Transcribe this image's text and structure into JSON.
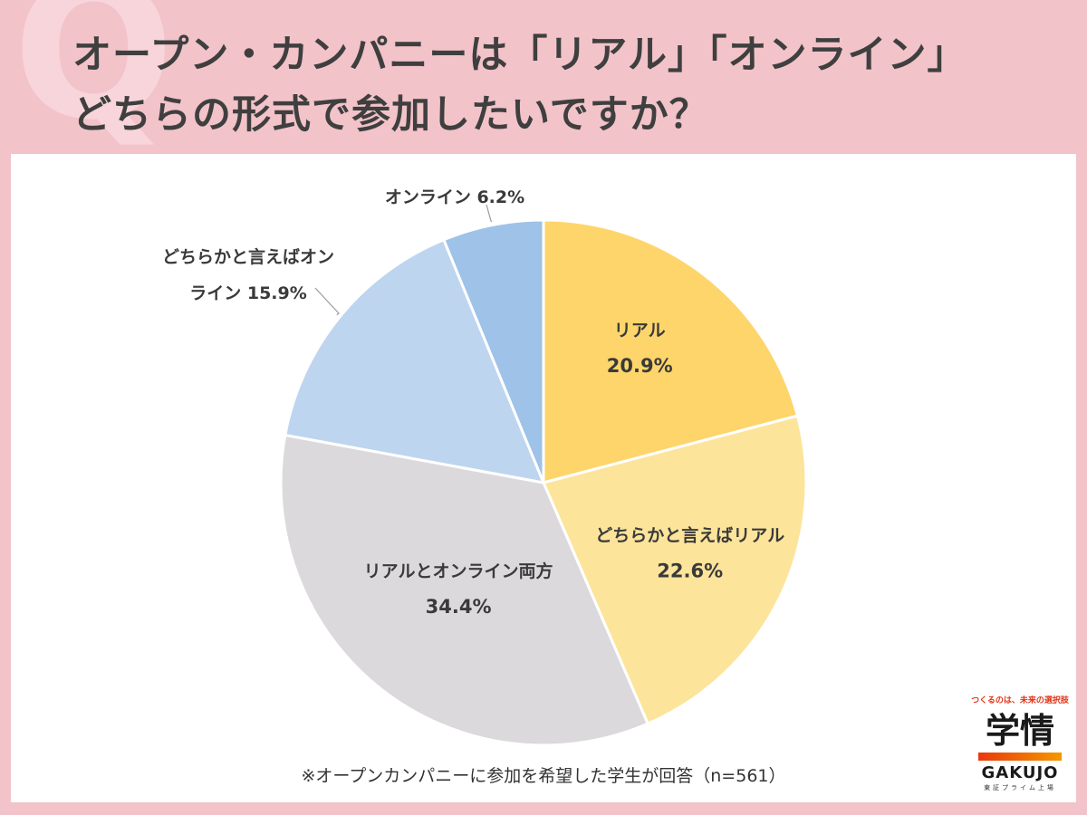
{
  "title_lines": [
    "オープン・カンパニーは「リアル」「オンライン」",
    "どちらの形式で参加したいですか？"
  ],
  "background_letter": "Q",
  "chart_data": {
    "type": "pie",
    "title": "オープン・カンパニーは「リアル」「オンライン」どちらの形式で参加したいですか？",
    "start": "12 o'clock, clockwise",
    "slices": [
      {
        "label": "リアル",
        "value": 20.9,
        "value_label": "20.9%",
        "color": "#fdd56b"
      },
      {
        "label": "どちらかと言えばリアル",
        "value": 22.6,
        "value_label": "22.6%",
        "color": "#fde49b"
      },
      {
        "label": "リアルとオンライン両方",
        "value": 34.4,
        "value_label": "34.4%",
        "color": "#dbd9dc"
      },
      {
        "label": "どちらかと言えばオンライン",
        "value": 15.9,
        "value_label": "15.9%",
        "color": "#bed5ef"
      },
      {
        "label": "オンライン",
        "value": 6.2,
        "value_label": "6.2%",
        "color": "#9ec2e8"
      }
    ],
    "outer_label_lines": [
      [
        "オンライン 6.2%"
      ],
      [
        "どちらかと言えばオン",
        "ライン 15.9%"
      ]
    ]
  },
  "footnote": "※オープンカンパニーに参加を希望した学生が回答（n=561）",
  "logo": {
    "tagline": "つくるのは、未来の選択肢",
    "mark": "学情",
    "name_en": "GAKUJO",
    "sub": "東証プライム上場"
  }
}
